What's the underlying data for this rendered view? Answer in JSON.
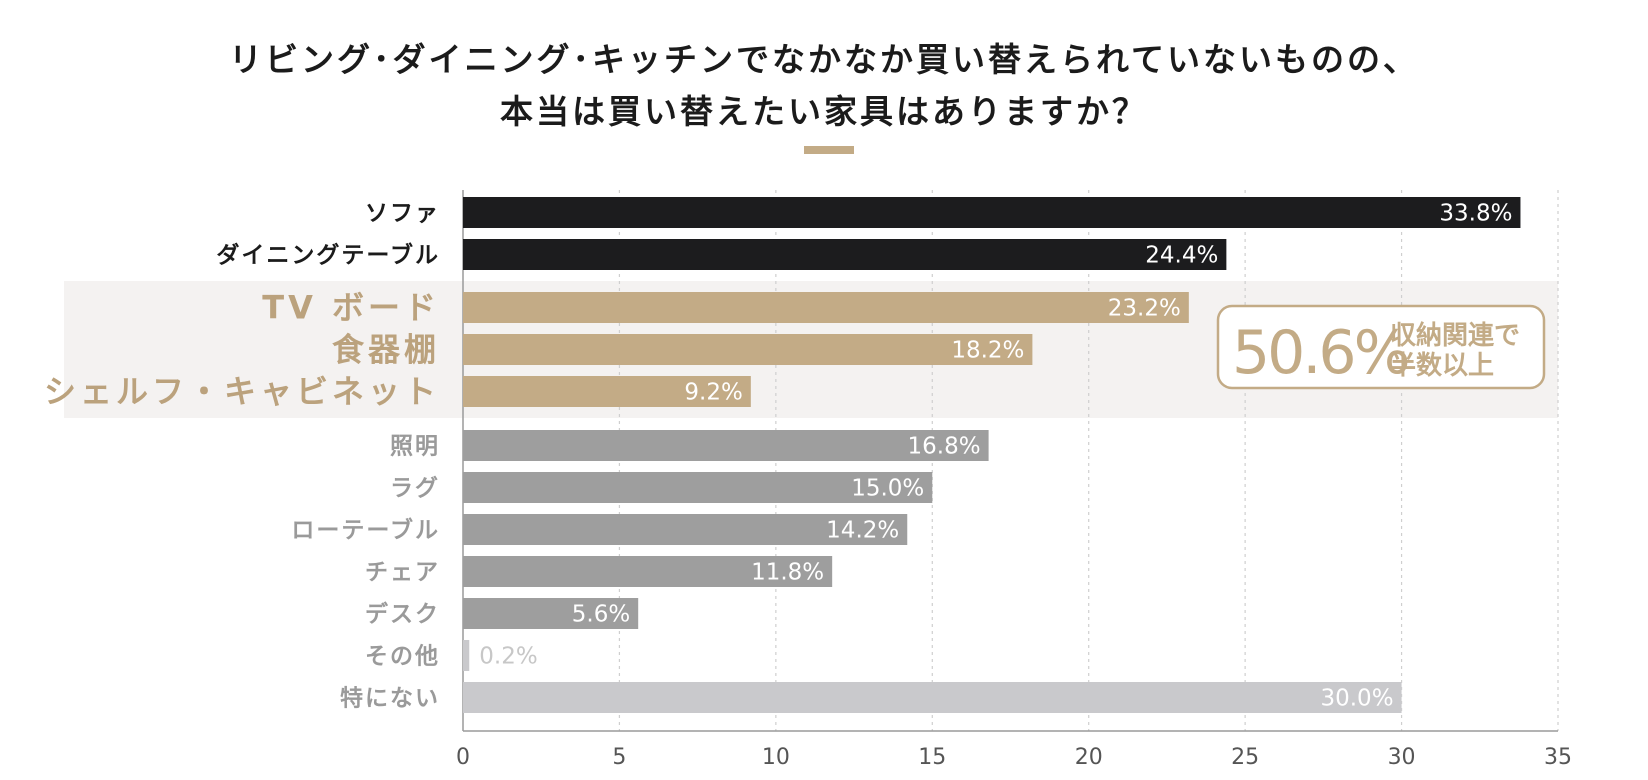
{
  "title": {
    "line1": "リビング･ダイニング･キッチンでなかなか買い替えられていないものの、",
    "line2": "本当は買い替えたい家具はありますか？"
  },
  "colors": {
    "black": "#1c1c1e",
    "gold": "#c3ab86",
    "gray": "#9e9e9e",
    "light_gray": "#c9c9cc",
    "highlight_bg": "#f4f2f1",
    "gold_text": "#bba27d",
    "gray_text": "#9a9a9a",
    "light_text": "#c7c7c7"
  },
  "callout": {
    "value": "50.6%",
    "line1": "収納関連で",
    "line2": "半数以上"
  },
  "chart_data": {
    "type": "bar",
    "orientation": "horizontal",
    "categories": [
      "ソファ",
      "ダイニングテーブル",
      "TV ボード",
      "食器棚",
      "シェルフ・キャビネット",
      "照明",
      "ラグ",
      "ローテーブル",
      "チェア",
      "デスク",
      "その他",
      "特にない"
    ],
    "values": [
      33.8,
      24.4,
      23.2,
      18.2,
      9.2,
      16.8,
      15.0,
      14.2,
      11.8,
      5.6,
      0.2,
      30.0
    ],
    "value_labels": [
      "33.8%",
      "24.4%",
      "23.2%",
      "18.2%",
      "9.2%",
      "16.8%",
      "15.0%",
      "14.2%",
      "11.8%",
      "5.6%",
      "0.2%",
      "30.0%"
    ],
    "groups": [
      "black",
      "black",
      "gold",
      "gold",
      "gold",
      "gray",
      "gray",
      "gray",
      "gray",
      "gray",
      "light",
      "light"
    ],
    "xlim": [
      0,
      35
    ],
    "xticks": [
      0,
      5,
      10,
      15,
      20,
      25,
      30,
      35
    ],
    "xlabel": "",
    "ylabel": "",
    "grid": true,
    "highlight_group": "gold"
  }
}
